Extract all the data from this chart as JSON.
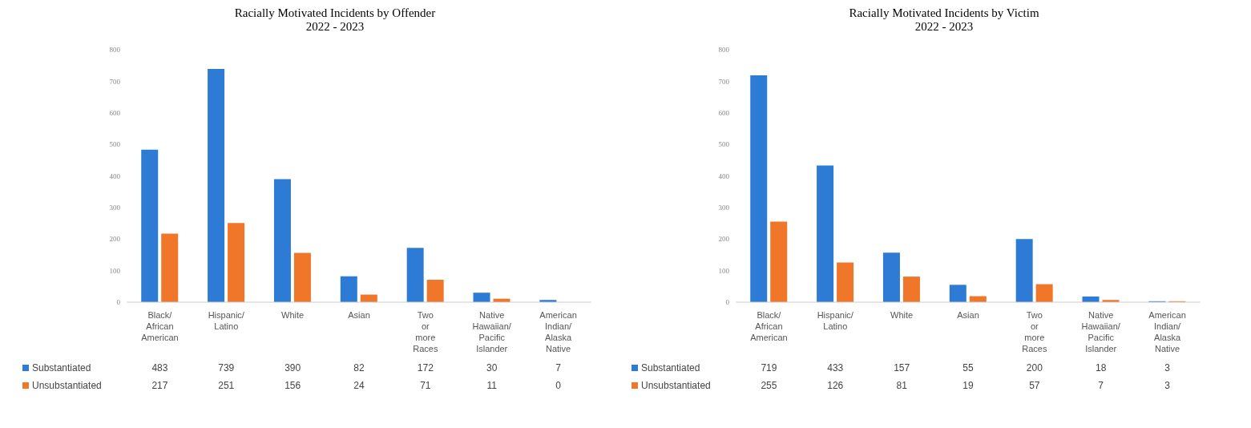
{
  "chart_data": [
    {
      "type": "bar",
      "title": "Racially Motivated Incidents by Offender\n2022 - 2023",
      "categories": [
        "Black/ African American",
        "Hispanic/ Latino",
        "White",
        "Asian",
        "Two or more Races",
        "Native Hawaiian/ Pacific Islander",
        "American Indian/ Alaska Native"
      ],
      "series": [
        {
          "name": "Substantiated",
          "color": "#2e7bd6",
          "values": [
            483,
            739,
            390,
            82,
            172,
            30,
            7
          ]
        },
        {
          "name": "Unsubstantiated",
          "color": "#f0762a",
          "values": [
            217,
            251,
            156,
            24,
            71,
            11,
            0
          ]
        }
      ],
      "ylim": [
        0,
        800
      ],
      "yticks": [
        0,
        100,
        200,
        300,
        400,
        500,
        600,
        700,
        800
      ],
      "grid": false,
      "legend": "bottom",
      "data_labels": true
    },
    {
      "type": "bar",
      "title": "Racially Motivated Incidents by Victim\n2022 - 2023",
      "categories": [
        "Black/ African American",
        "Hispanic/ Latino",
        "White",
        "Asian",
        "Two or more Races",
        "Native Hawaiian/ Pacific Islander",
        "American Indian/ Alaska Native"
      ],
      "series": [
        {
          "name": "Substantiated",
          "color": "#2e7bd6",
          "values": [
            719,
            433,
            157,
            55,
            200,
            18,
            3
          ]
        },
        {
          "name": "Unsubstantiated",
          "color": "#f0762a",
          "values": [
            255,
            126,
            81,
            19,
            57,
            7,
            3
          ]
        }
      ],
      "ylim": [
        0,
        800
      ],
      "yticks": [
        0,
        100,
        200,
        300,
        400,
        500,
        600,
        700,
        800
      ],
      "grid": false,
      "legend": "bottom",
      "data_labels": true
    }
  ]
}
